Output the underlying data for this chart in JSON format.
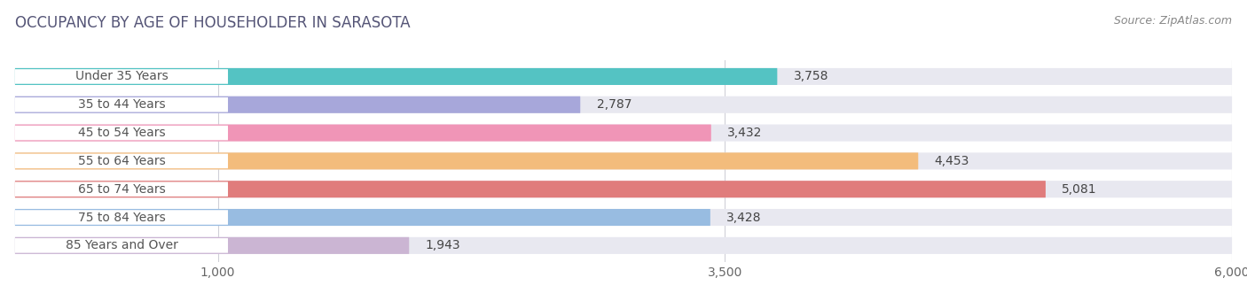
{
  "title": "OCCUPANCY BY AGE OF HOUSEHOLDER IN SARASOTA",
  "source": "Source: ZipAtlas.com",
  "categories": [
    "Under 35 Years",
    "35 to 44 Years",
    "45 to 54 Years",
    "55 to 64 Years",
    "65 to 74 Years",
    "75 to 84 Years",
    "85 Years and Over"
  ],
  "values": [
    3758,
    2787,
    3432,
    4453,
    5081,
    3428,
    1943
  ],
  "bar_colors": [
    "#44bfbf",
    "#a0a0d8",
    "#f28cb1",
    "#f5b870",
    "#e07070",
    "#90b8e0",
    "#c8b0d0"
  ],
  "bar_bg_color": "#e8e8f0",
  "xlim": [
    0,
    6000
  ],
  "xticks": [
    1000,
    3500,
    6000
  ],
  "title_fontsize": 12,
  "source_fontsize": 9,
  "label_fontsize": 10,
  "value_fontsize": 10,
  "tick_fontsize": 10,
  "background_color": "#ffffff",
  "grid_color": "#d0d0d8",
  "label_box_color": "#ffffff",
  "label_text_color": "#555555"
}
